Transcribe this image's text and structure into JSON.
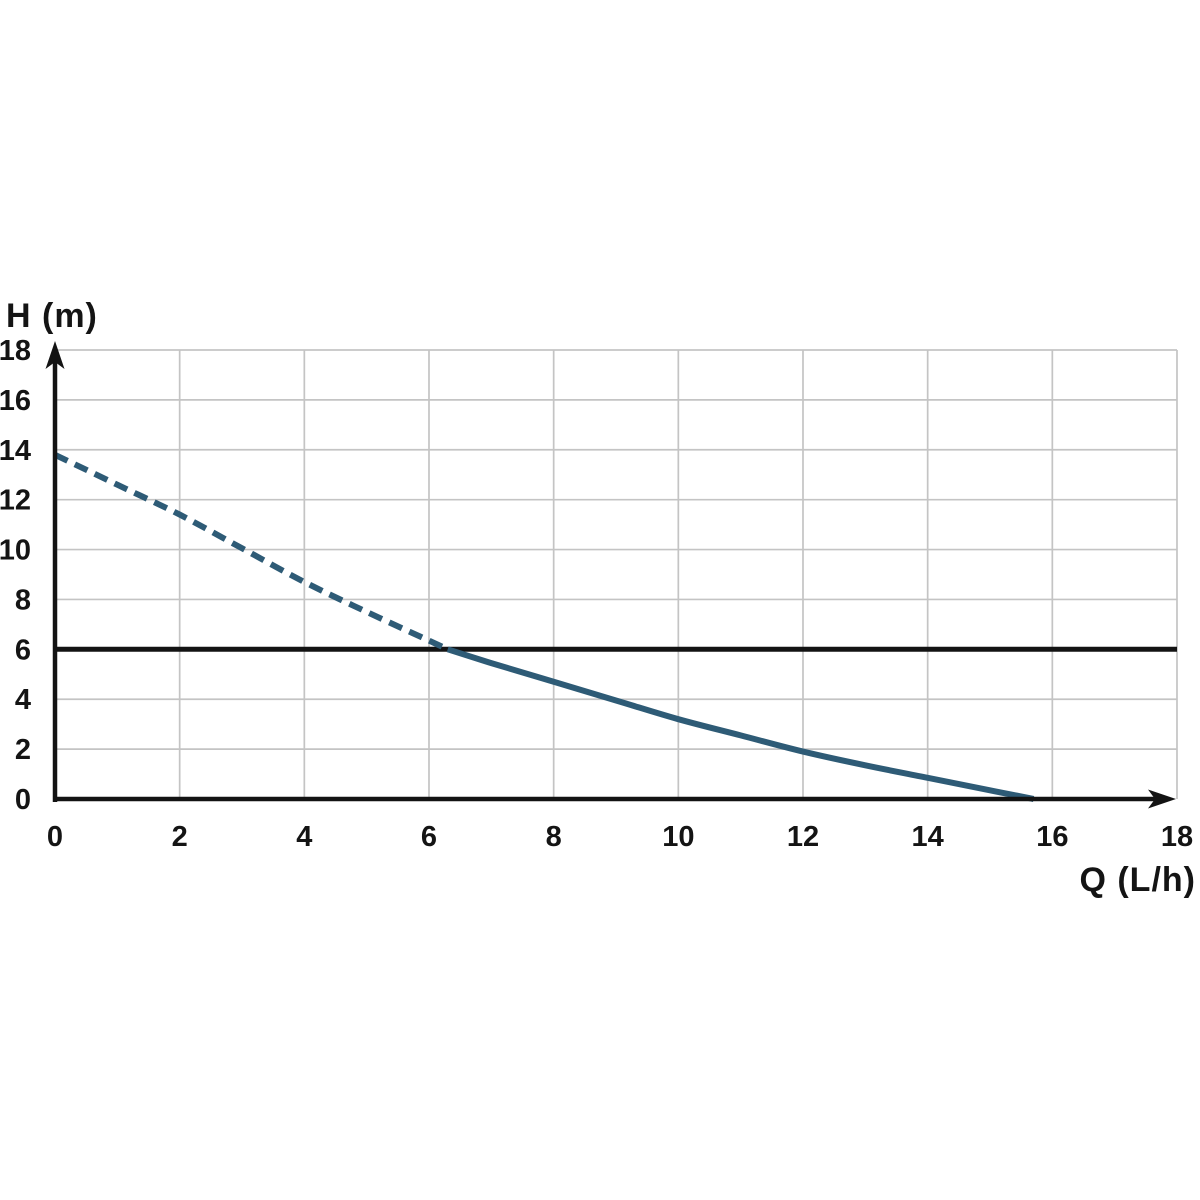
{
  "chart_data": {
    "type": "line",
    "title": "",
    "xlabel": "Q (L/h)",
    "ylabel": "H (m)",
    "xlim": [
      0,
      18
    ],
    "ylim": [
      0,
      18
    ],
    "x_ticks": [
      0,
      2,
      4,
      6,
      8,
      10,
      12,
      14,
      16,
      18
    ],
    "y_ticks": [
      0,
      2,
      4,
      6,
      8,
      10,
      12,
      14,
      16,
      18
    ],
    "grid": true,
    "legend": "none",
    "colors": {
      "curve": "#2e5b76",
      "reference": "#131313",
      "grid": "#c4c4c4",
      "axis": "#131313",
      "text": "#141414",
      "background": "#ffffff"
    },
    "series": [
      {
        "name": "head-reference-line",
        "style": "solid",
        "role": "reference",
        "color": "#131313",
        "points": [
          [
            0,
            6
          ],
          [
            18,
            6
          ]
        ]
      },
      {
        "name": "pump-curve-extrapolated",
        "style": "dashed",
        "role": "curve",
        "color": "#2e5b76",
        "points": [
          [
            0,
            13.8
          ],
          [
            1,
            12.6
          ],
          [
            2,
            11.4
          ],
          [
            3,
            10.05
          ],
          [
            4,
            8.7
          ],
          [
            5,
            7.5
          ],
          [
            6,
            6.35
          ],
          [
            6.3,
            6.0
          ]
        ]
      },
      {
        "name": "pump-curve",
        "style": "solid",
        "role": "curve",
        "color": "#2e5b76",
        "points": [
          [
            6.3,
            6.0
          ],
          [
            7,
            5.45
          ],
          [
            8,
            4.7
          ],
          [
            9,
            3.95
          ],
          [
            10,
            3.2
          ],
          [
            11,
            2.55
          ],
          [
            12,
            1.9
          ],
          [
            13,
            1.35
          ],
          [
            14,
            0.85
          ],
          [
            15,
            0.35
          ],
          [
            15.7,
            0
          ]
        ]
      }
    ]
  }
}
